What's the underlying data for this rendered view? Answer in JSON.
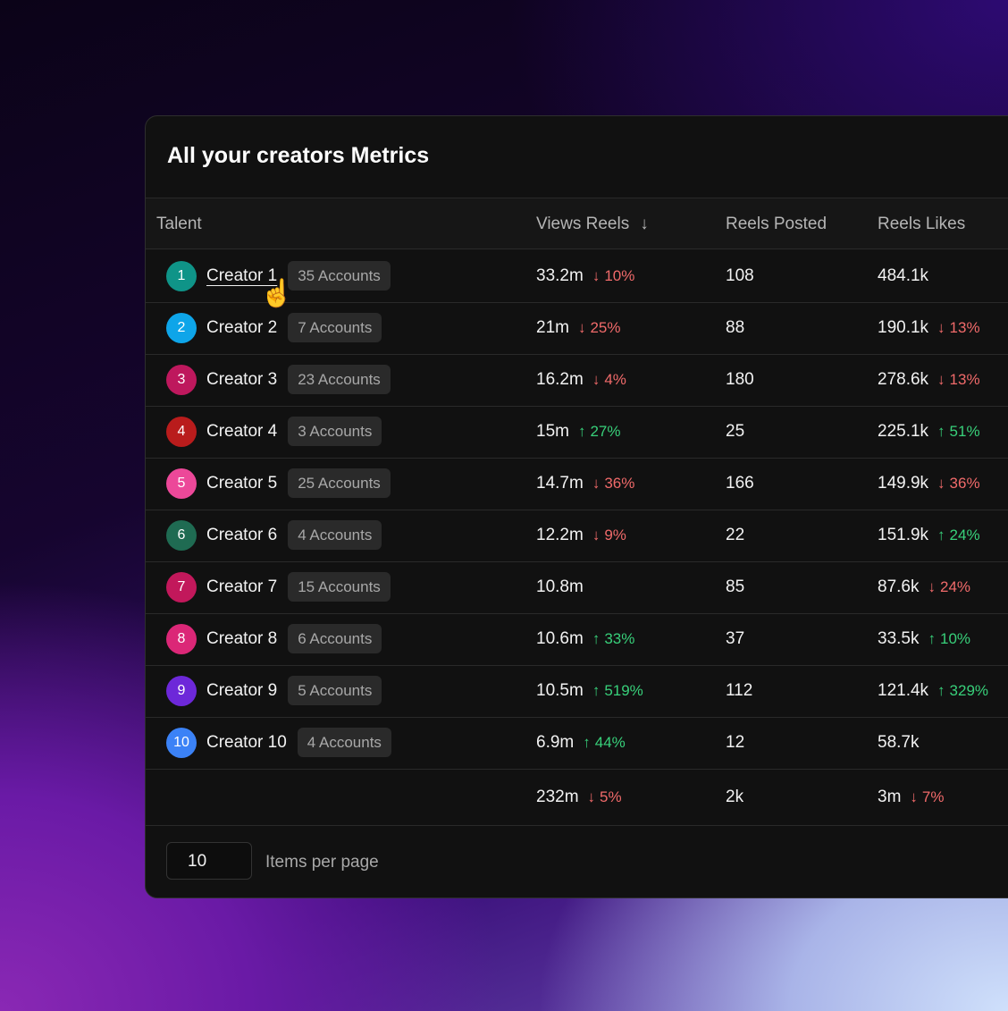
{
  "header": {
    "title": "All your creators Metrics"
  },
  "table": {
    "columns": [
      "Talent",
      "Views Reels",
      "Reels Posted",
      "Reels Likes"
    ],
    "sorted_column": 1,
    "rows": [
      {
        "rank": "1",
        "name": "Creator 1",
        "avatar_color": "#0f9488",
        "accounts": "35 Accounts",
        "views": "33.2m",
        "views_change": {
          "text": "10%",
          "dir": "down"
        },
        "posted": "108",
        "likes": "484.1k",
        "likes_change": null,
        "hovered": true
      },
      {
        "rank": "2",
        "name": "Creator 2",
        "avatar_color": "#0ea5e9",
        "accounts": "7 Accounts",
        "views": "21m",
        "views_change": {
          "text": "25%",
          "dir": "down"
        },
        "posted": "88",
        "likes": "190.1k",
        "likes_change": {
          "text": "13%",
          "dir": "down"
        }
      },
      {
        "rank": "3",
        "name": "Creator 3",
        "avatar_color": "#be185d",
        "accounts": "23 Accounts",
        "views": "16.2m",
        "views_change": {
          "text": "4%",
          "dir": "down"
        },
        "posted": "180",
        "likes": "278.6k",
        "likes_change": {
          "text": "13%",
          "dir": "down"
        }
      },
      {
        "rank": "4",
        "name": "Creator 4",
        "avatar_color": "#b91c1c",
        "accounts": "3 Accounts",
        "views": "15m",
        "views_change": {
          "text": "27%",
          "dir": "up"
        },
        "posted": "25",
        "likes": "225.1k",
        "likes_change": {
          "text": "51%",
          "dir": "up"
        }
      },
      {
        "rank": "5",
        "name": "Creator 5",
        "avatar_color": "#ec4899",
        "accounts": "25 Accounts",
        "views": "14.7m",
        "views_change": {
          "text": "36%",
          "dir": "down"
        },
        "posted": "166",
        "likes": "149.9k",
        "likes_change": {
          "text": "36%",
          "dir": "down"
        }
      },
      {
        "rank": "6",
        "name": "Creator 6",
        "avatar_color": "#1f6b52",
        "accounts": "4 Accounts",
        "views": "12.2m",
        "views_change": {
          "text": "9%",
          "dir": "down"
        },
        "posted": "22",
        "likes": "151.9k",
        "likes_change": {
          "text": "24%",
          "dir": "up"
        }
      },
      {
        "rank": "7",
        "name": "Creator 7",
        "avatar_color": "#c2185b",
        "accounts": "15 Accounts",
        "views": "10.8m",
        "views_change": null,
        "posted": "85",
        "likes": "87.6k",
        "likes_change": {
          "text": "24%",
          "dir": "down"
        }
      },
      {
        "rank": "8",
        "name": "Creator 8",
        "avatar_color": "#db2777",
        "accounts": "6 Accounts",
        "views": "10.6m",
        "views_change": {
          "text": "33%",
          "dir": "up"
        },
        "posted": "37",
        "likes": "33.5k",
        "likes_change": {
          "text": "10%",
          "dir": "up"
        }
      },
      {
        "rank": "9",
        "name": "Creator 9",
        "avatar_color": "#6d28d9",
        "accounts": "5 Accounts",
        "views": "10.5m",
        "views_change": {
          "text": "519%",
          "dir": "up"
        },
        "posted": "112",
        "likes": "121.4k",
        "likes_change": {
          "text": "329%",
          "dir": "up"
        }
      },
      {
        "rank": "10",
        "name": "Creator 10",
        "avatar_color": "#3b82f6",
        "accounts": "4 Accounts",
        "views": "6.9m",
        "views_change": {
          "text": "44%",
          "dir": "up"
        },
        "posted": "12",
        "likes": "58.7k",
        "likes_change": null
      }
    ],
    "totals": {
      "views": "232m",
      "views_change": {
        "text": "5%",
        "dir": "down"
      },
      "posted": "2k",
      "likes": "3m",
      "likes_change": {
        "text": "7%",
        "dir": "down"
      }
    }
  },
  "footer": {
    "per_page": "10",
    "per_page_label": "Items per page"
  }
}
